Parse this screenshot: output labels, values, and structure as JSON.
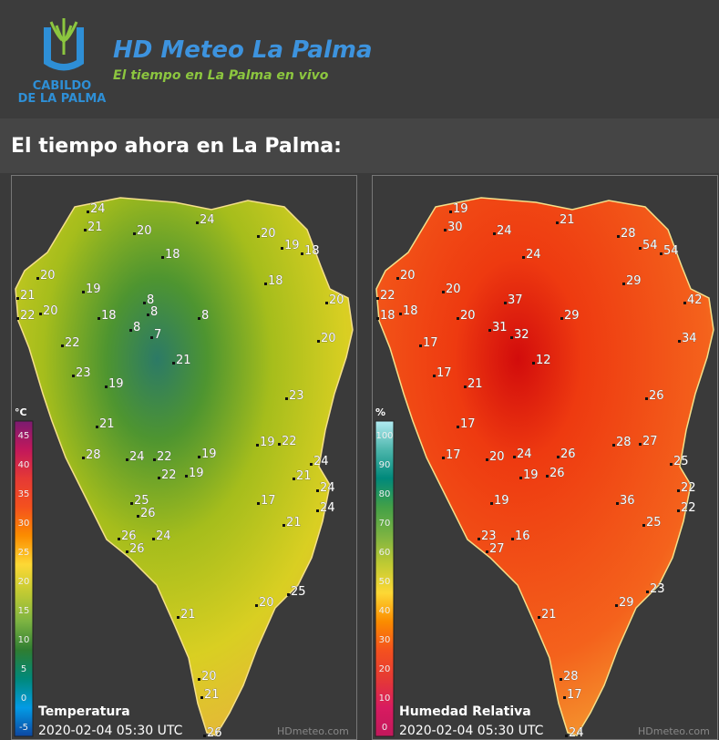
{
  "header": {
    "logo_text": [
      "CABILDO",
      "DE LA PALMA"
    ],
    "title": "HD Meteo La Palma",
    "subtitle": "El tiempo en La Palma en vivo"
  },
  "heading": "El tiempo ahora en La Palma:",
  "maps": [
    {
      "title": "Temperatura",
      "timestamp": "2020-02-04 05:30 UTC",
      "unit": "°C",
      "legend_ticks": [
        45,
        40,
        35,
        30,
        25,
        20,
        15,
        10,
        5,
        0,
        -5
      ],
      "stations": [
        24,
        21,
        20,
        24,
        20,
        19,
        18,
        18,
        20,
        19,
        18,
        21,
        20,
        22,
        20,
        18,
        8,
        8,
        8,
        8,
        7,
        22,
        20,
        21,
        23,
        19,
        23,
        21,
        28,
        24,
        22,
        19,
        19,
        22,
        24,
        19,
        22,
        21,
        24,
        25,
        17,
        26,
        24,
        26,
        24,
        21,
        26,
        25,
        20,
        21,
        20,
        21,
        26
      ],
      "watermark": "HDmeteo.com"
    },
    {
      "title": "Humedad Relativa",
      "timestamp": "2020-02-04 05:30 UTC",
      "unit": "%",
      "legend_ticks": [
        100,
        90,
        80,
        70,
        60,
        50,
        40,
        30,
        20,
        10,
        0
      ],
      "stations": [
        19,
        30,
        21,
        24,
        28,
        54,
        54,
        24,
        20,
        29,
        20,
        22,
        37,
        42,
        18,
        18,
        20,
        29,
        31,
        32,
        17,
        34,
        12,
        17,
        21,
        26,
        17,
        17,
        20,
        24,
        26,
        28,
        27,
        25,
        19,
        26,
        22,
        22,
        36,
        19,
        25,
        23,
        16,
        27,
        23,
        29,
        21,
        28,
        17,
        24
      ],
      "watermark": "HDmeteo.com"
    }
  ]
}
